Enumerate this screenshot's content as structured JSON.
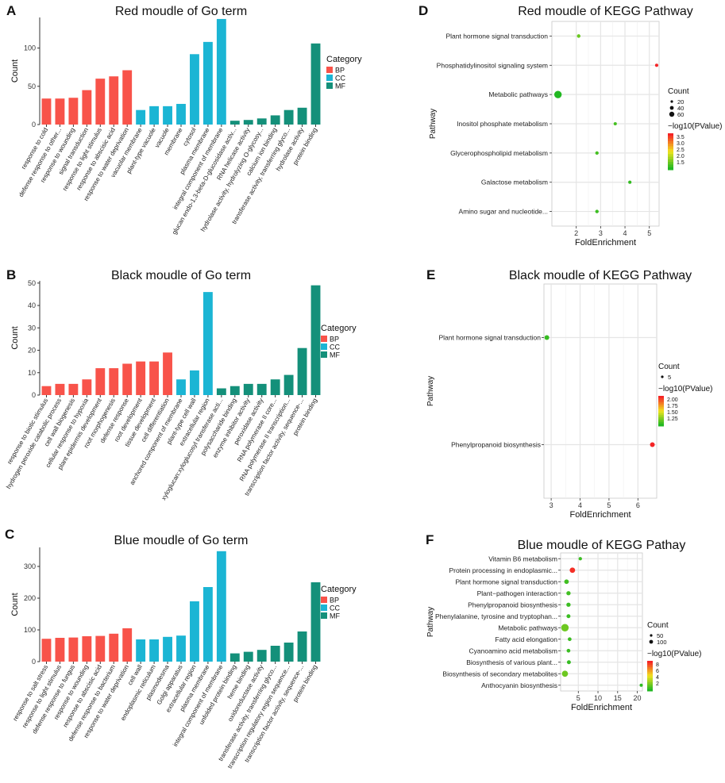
{
  "colors": {
    "BP": "#F8534A",
    "CC": "#1BB5D4",
    "MF": "#14907A",
    "panel_bg": "#FFFFFF",
    "grid": "#E5E5E5",
    "axis": "#333333"
  },
  "chart_data": [
    {
      "panel": "A",
      "type": "bar",
      "title": "Red moudle of Go term",
      "xlabel": "",
      "ylabel": "Count",
      "ylim": [
        0,
        140
      ],
      "yticks": [
        0,
        50,
        100
      ],
      "legend_title": "Category",
      "legend": [
        "BP",
        "CC",
        "MF"
      ],
      "categories": [
        "response to cold",
        "defense response to other...",
        "response to wounding",
        "signal transduction",
        "response to light stimulus",
        "response to abscisic acid",
        "response to water deprivation",
        "vacuolar membrane",
        "plant-type vacuole",
        "vacuole",
        "membrane",
        "cytosol",
        "plasma membrane",
        "integral component of membrane",
        "glucan endo-1,3-beta-D-glucosidase activ...",
        "RNA helicase activity",
        "hydrolase activity, hydrolyzing O-glycosy...",
        "calcium ion binding",
        "transferase activity, transferring glyco...",
        "hydrolase activity",
        "protein binding"
      ],
      "values": [
        34,
        34,
        35,
        45,
        60,
        63,
        71,
        19,
        24,
        24,
        27,
        92,
        108,
        138,
        5,
        6,
        8,
        12,
        19,
        22,
        106
      ],
      "groups": [
        "BP",
        "BP",
        "BP",
        "BP",
        "BP",
        "BP",
        "BP",
        "CC",
        "CC",
        "CC",
        "CC",
        "CC",
        "CC",
        "CC",
        "MF",
        "MF",
        "MF",
        "MF",
        "MF",
        "MF",
        "MF"
      ]
    },
    {
      "panel": "B",
      "type": "bar",
      "title": "Black moudle of Go term",
      "xlabel": "",
      "ylabel": "Count",
      "ylim": [
        0,
        51
      ],
      "yticks": [
        0,
        10,
        20,
        30,
        40,
        50
      ],
      "legend_title": "Category",
      "legend": [
        "BP",
        "CC",
        "MF"
      ],
      "categories": [
        "response to biotic stimulus",
        "hydrogen peroxide catabolic process",
        "cell wall biogenesis",
        "cellular response to hypoxia",
        "plant epidermis development",
        "root morphogenesis",
        "defense response",
        "root development",
        "tissue development",
        "cell differentiation",
        "anchored component of membrane",
        "plant-type cell wall",
        "extracellular region",
        "xyloglucan:xyloglucosyl transferase acti...",
        "polysaccharide binding",
        "enzyme inhibitor activity",
        "peroxidase activity",
        "RNA polymerase II core...",
        "RNA polymerase II transcription...",
        "transcription factor activity, sequence-...",
        "protein binding"
      ],
      "values": [
        4,
        5,
        5,
        7,
        12,
        12,
        14,
        15,
        15,
        19,
        7,
        11,
        46,
        3,
        4,
        5,
        5,
        7,
        9,
        21,
        49
      ],
      "groups": [
        "BP",
        "BP",
        "BP",
        "BP",
        "BP",
        "BP",
        "BP",
        "BP",
        "BP",
        "BP",
        "CC",
        "CC",
        "CC",
        "MF",
        "MF",
        "MF",
        "MF",
        "MF",
        "MF",
        "MF",
        "MF"
      ]
    },
    {
      "panel": "C",
      "type": "bar",
      "title": "Blue moudle of Go term",
      "xlabel": "",
      "ylabel": "Count",
      "ylim": [
        0,
        360
      ],
      "yticks": [
        0,
        100,
        200,
        300
      ],
      "legend_title": "Category",
      "legend": [
        "BP",
        "CC",
        "MF"
      ],
      "categories": [
        "response to salt stress",
        "response to light stimulus",
        "defense response to fungus",
        "response to wounding",
        "response to abscisic acid",
        "defense response to bacterium",
        "response to water deprivation",
        "cell wall",
        "endoplasmic reticulum",
        "plasmodesma",
        "Golgi apparatus",
        "extracellular region",
        "plasma membrane",
        "integral component of membrane",
        "unfolded protein binding",
        "heme binding",
        "oxidoreductase activity",
        "transferase activity, transferring glyco...",
        "transcription regulatory region sequence...",
        "transcription factor activity, sequence-...",
        "protein binding"
      ],
      "values": [
        72,
        75,
        76,
        80,
        81,
        88,
        105,
        70,
        70,
        78,
        82,
        190,
        235,
        348,
        26,
        31,
        37,
        50,
        60,
        95,
        250
      ],
      "groups": [
        "BP",
        "BP",
        "BP",
        "BP",
        "BP",
        "BP",
        "BP",
        "CC",
        "CC",
        "CC",
        "CC",
        "CC",
        "CC",
        "CC",
        "MF",
        "MF",
        "MF",
        "MF",
        "MF",
        "MF",
        "MF"
      ]
    },
    {
      "panel": "D",
      "type": "scatter",
      "title": "Red moudle of KEGG Pathway",
      "xlabel": "FoldEnrichment",
      "ylabel": "Pathway",
      "xlim": [
        1,
        5.4
      ],
      "xticks": [
        2,
        3,
        4,
        5
      ],
      "pathways": [
        "Plant hormone signal transduction",
        "Phosphatidylinositol signaling system",
        "Metabolic pathways",
        "Inositol phosphate metabolism",
        "Glycerophospholipid metabolism",
        "Galactose metabolism",
        "Amino sugar and nucleotide..."
      ],
      "fold_enrichment": [
        2.1,
        5.3,
        1.25,
        3.6,
        2.85,
        4.2,
        2.85
      ],
      "count": [
        4,
        2,
        70,
        2,
        3,
        2,
        3
      ],
      "neglog10p": [
        1.7,
        3.6,
        1.3,
        1.5,
        1.5,
        1.4,
        1.45
      ],
      "size_legend_title": "Count",
      "size_legend": [
        "20",
        "40",
        "60"
      ],
      "color_legend_title": "−log10(PValue)",
      "color_legend": [
        "3.5",
        "3.0",
        "2.5",
        "2.0",
        "1.5"
      ],
      "color_range": [
        1.3,
        3.6
      ]
    },
    {
      "panel": "E",
      "type": "scatter",
      "title": "Black moudle of KEGG Pathway",
      "xlabel": "FoldEnrichment",
      "ylabel": "Pathway",
      "xlim": [
        2.75,
        6.65
      ],
      "xticks": [
        3,
        4,
        5,
        6
      ],
      "pathways": [
        "Plant hormone signal transduction",
        "Phenylpropanoid biosynthesis"
      ],
      "fold_enrichment": [
        2.85,
        6.5
      ],
      "count": [
        5,
        5
      ],
      "neglog10p": [
        1.15,
        2.1
      ],
      "size_legend_title": "Count",
      "size_legend": [
        "5"
      ],
      "color_legend_title": "−log10(PValue)",
      "color_legend": [
        "2.00",
        "1.75",
        "1.50",
        "1.25"
      ],
      "color_range": [
        1.1,
        2.1
      ]
    },
    {
      "panel": "F",
      "type": "scatter",
      "title": "Blue moudle of KEGG Pathay",
      "xlabel": "FoldEnrichment",
      "ylabel": "Pathway",
      "xlim": [
        0.5,
        21.3
      ],
      "xticks": [
        5,
        10,
        15,
        20
      ],
      "pathways": [
        "Vitamin B6 metabolism",
        "Protein processing in endoplasmic...",
        "Plant hormone signal transduction",
        "Plant−pathogen interaction",
        "Phenylpropanoid biosynthesis",
        "Phenylalanine, tyrosine and tryptophan...",
        "Metabolic pathways",
        "Fatty acid elongation",
        "Cyanoamino acid metabolism",
        "Biosynthesis of various plant...",
        "Biosynthesis of secondary metabolites",
        "Anthocyanin biosynthesis"
      ],
      "fold_enrichment": [
        5.5,
        3.5,
        2.0,
        2.5,
        2.5,
        2.5,
        1.6,
        2.8,
        2.5,
        2.6,
        1.6,
        21.0
      ],
      "count": [
        5,
        40,
        20,
        15,
        15,
        10,
        110,
        8,
        8,
        10,
        60,
        3
      ],
      "neglog10p": [
        2.2,
        8.3,
        2.3,
        2.3,
        2.2,
        2.2,
        3.0,
        2.2,
        2.2,
        2.1,
        3.0,
        2.0
      ],
      "size_legend_title": "Count",
      "size_legend": [
        "50",
        "100"
      ],
      "color_legend_title": "−log10(PValue)",
      "color_legend": [
        "8",
        "6",
        "4",
        "2"
      ],
      "color_range": [
        1.8,
        8.5
      ]
    }
  ]
}
